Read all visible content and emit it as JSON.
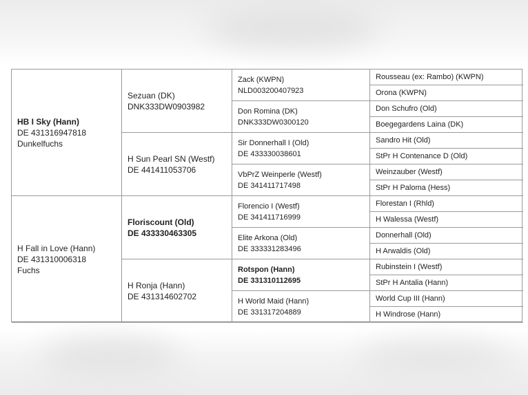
{
  "pedigree": {
    "gen1": [
      {
        "name": "HB I Sky (Hann)",
        "id": "DE 431316947818",
        "color": "Dunkelfuchs",
        "bold": true
      },
      {
        "name": "H Fall in Love (Hann)",
        "id": "DE 431310006318",
        "color": "Fuchs",
        "bold": false
      }
    ],
    "gen2": [
      {
        "name": "Sezuan (DK)",
        "id": "DNK333DW0903982",
        "bold": false
      },
      {
        "name": "H Sun Pearl SN (Westf)",
        "id": "DE 441411053706",
        "bold": false
      },
      {
        "name": "Floriscount (Old)",
        "id": "DE 433330463305",
        "bold": true
      },
      {
        "name": "H Ronja (Hann)",
        "id": "DE 431314602702",
        "bold": false
      }
    ],
    "gen3": [
      {
        "name": "Zack (KWPN)",
        "id": "NLD003200407923",
        "bold": false
      },
      {
        "name": "Don Romina (DK)",
        "id": "DNK333DW0300120",
        "bold": false
      },
      {
        "name": "Sir Donnerhall I (Old)",
        "id": "DE 433330038601",
        "bold": false
      },
      {
        "name": "VbPrZ Weinperle (Westf)",
        "id": "DE 341411717498",
        "bold": false
      },
      {
        "name": "Florencio I (Westf)",
        "id": "DE 341411716999",
        "bold": false
      },
      {
        "name": "Elite Arkona (Old)",
        "id": "DE 333331283496",
        "bold": false
      },
      {
        "name": "Rotspon (Hann)",
        "id": "DE 331310112695",
        "bold": true
      },
      {
        "name": "H World Maid (Hann)",
        "id": "DE 331317204889",
        "bold": false
      }
    ],
    "gen4": [
      "Rousseau (ex: Rambo) (KWPN)",
      "Orona (KWPN)",
      "Don Schufro (Old)",
      "Boegegardens Laina (DK)",
      "Sandro Hit (Old)",
      "StPr H Contenance D (Old)",
      "Weinzauber (Westf)",
      "StPr H Paloma (Hess)",
      "Florestan I (Rhld)",
      "H Walessa (Westf)",
      "Donnerhall (Old)",
      "H Arwaldis (Old)",
      "Rubinstein I (Westf)",
      "StPr H Antalia (Hann)",
      "World Cup III (Hann)",
      "H Windrose (Hann)"
    ]
  }
}
